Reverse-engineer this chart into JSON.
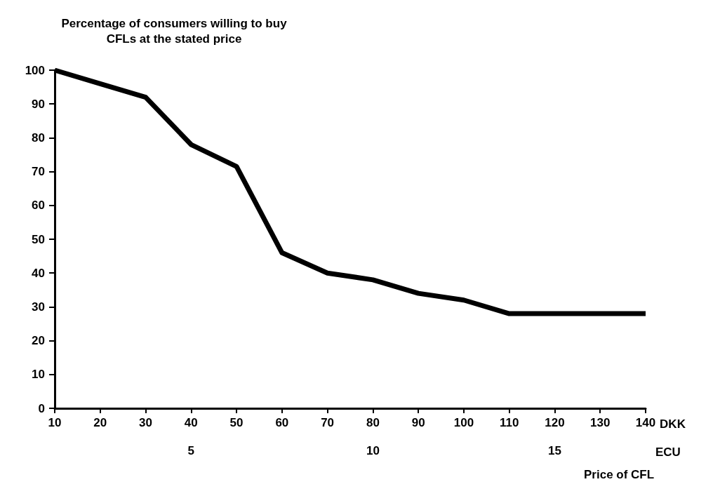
{
  "chart_data": {
    "type": "line",
    "ylabel": "Percentage of consumers willing to buy\nCFLs at the stated price",
    "xlabel": "Price of CFL",
    "x2label": "ECU",
    "annotations": [
      "DKK"
    ],
    "x": [
      10,
      20,
      30,
      40,
      50,
      60,
      70,
      80,
      90,
      100,
      110,
      120,
      130,
      140
    ],
    "series": [
      {
        "color": "#000000",
        "values": [
          100,
          96,
          92,
          78,
          71.5,
          46,
          40,
          38,
          34,
          32,
          28,
          28,
          28,
          28
        ]
      }
    ],
    "xlim": [
      10,
      140
    ],
    "xticks": [
      10,
      20,
      30,
      40,
      50,
      60,
      70,
      80,
      90,
      100,
      110,
      120,
      130,
      140
    ],
    "x2lim": [
      1.25,
      17.5
    ],
    "x2ticks": [
      5,
      10,
      15
    ],
    "ylim": [
      0,
      100
    ],
    "yticks": [
      0,
      10,
      20,
      30,
      40,
      50,
      60,
      70,
      80,
      90,
      100
    ],
    "grid": false,
    "legend": false,
    "marker": "none",
    "line_style": "solid"
  }
}
